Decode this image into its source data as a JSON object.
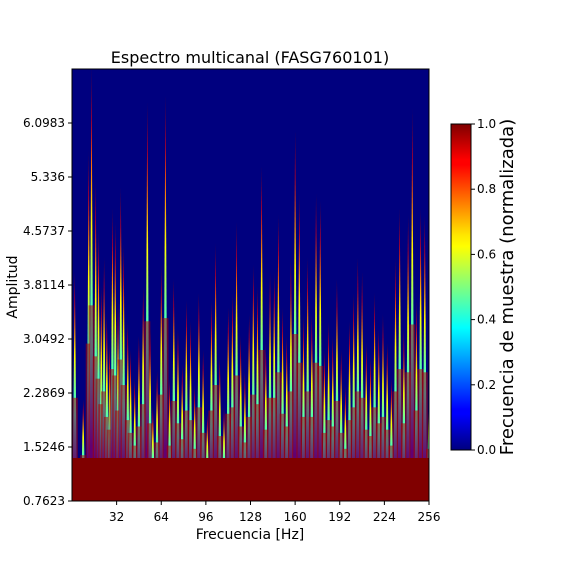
{
  "chart_data": {
    "type": "heatmap",
    "title": "Espectro multicanal (FASG760101)",
    "xlabel": "Frecuencia [Hz]",
    "ylabel": "Amplitud",
    "xlim": [
      0,
      256
    ],
    "ylim": [
      0.7623,
      6.8606
    ],
    "xticks": [
      32,
      64,
      96,
      128,
      160,
      192,
      224,
      256
    ],
    "yticks": [
      "0.7623",
      "1.5246",
      "2.2869",
      "3.0492",
      "3.8114",
      "4.5737",
      "5.336",
      "6.0983"
    ],
    "colormap": "jet",
    "colorbar": {
      "label": "Frecuencia de muestra (normalizada)",
      "range": [
        0,
        1
      ],
      "ticks": [
        "0.0",
        "0.2",
        "0.4",
        "0.6",
        "0.8",
        "1.0"
      ]
    },
    "spectrum_frequency_hz": [
      2,
      5,
      8,
      12,
      14,
      17,
      19,
      21,
      23,
      25,
      27,
      29,
      31,
      33,
      35,
      37,
      40,
      42,
      45,
      48,
      51,
      54,
      56,
      58,
      61,
      64,
      67,
      70,
      73,
      76,
      79,
      82,
      85,
      88,
      91,
      94,
      97,
      100,
      103,
      106,
      109,
      112,
      115,
      118,
      121,
      124,
      127,
      130,
      133,
      136,
      139,
      142,
      145,
      148,
      151,
      154,
      157,
      160,
      163,
      166,
      169,
      172,
      175,
      178,
      181,
      184,
      187,
      190,
      193,
      196,
      199,
      202,
      205,
      208,
      211,
      214,
      217,
      220,
      223,
      226,
      229,
      232,
      235,
      238,
      241,
      244,
      247,
      250,
      253,
      256
    ],
    "spectrum_peak_amplitude": [
      4.0,
      0.9,
      2.2,
      5.7,
      6.9,
      5.3,
      4.6,
      3.8,
      4.2,
      3.4,
      3.0,
      4.9,
      4.7,
      3.6,
      5.2,
      4.4,
      3.3,
      2.9,
      2.5,
      3.1,
      3.8,
      6.4,
      3.2,
      2.1,
      2.6,
      4.1,
      6.5,
      2.5,
      3.9,
      3.2,
      2.7,
      3.6,
      3.3,
      2.4,
      3.7,
      2.9,
      2.0,
      3.6,
      4.4,
      2.8,
      2.1,
      3.5,
      3.7,
      4.7,
      3.1,
      2.6,
      3.4,
      4.1,
      3.8,
      5.5,
      3.0,
      4.0,
      4.0,
      4.8,
      3.5,
      3.1,
      4.2,
      6.0,
      5.1,
      3.4,
      4.2,
      3.4,
      5.1,
      5.0,
      2.9,
      3.3,
      3.1,
      3.9,
      2.9,
      2.4,
      3.3,
      3.7,
      4.2,
      4.0,
      3.0,
      2.8,
      3.7,
      3.2,
      3.4,
      3.0,
      2.5,
      4.2,
      4.9,
      3.2,
      4.8,
      6.3,
      3.6,
      4.9,
      4.8,
      2.4
    ]
  }
}
